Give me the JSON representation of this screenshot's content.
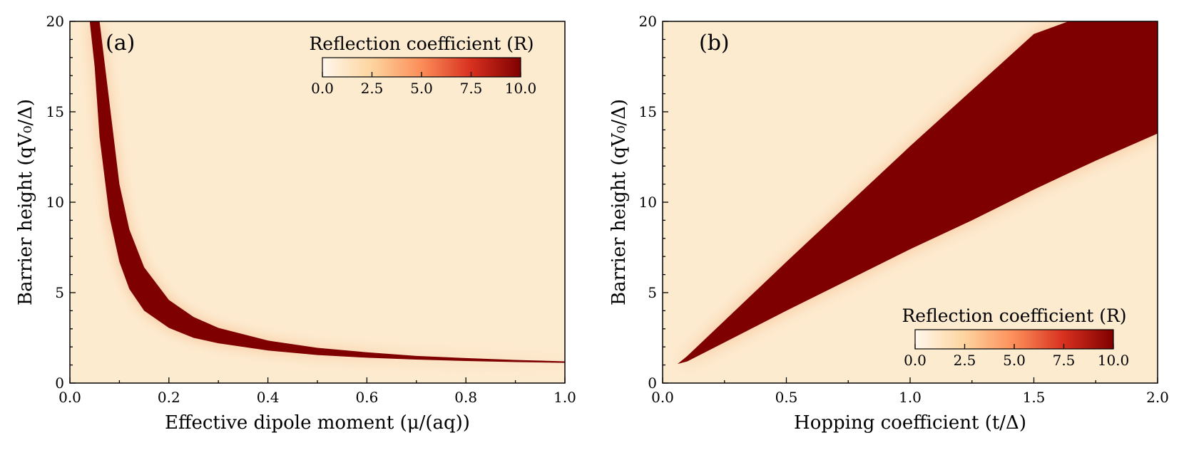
{
  "chart_data": [
    {
      "type": "heatmap",
      "panel_label": "(a)",
      "xlabel": "Effective dipole moment (μ/(aq))",
      "ylabel": "Barrier height (qV₀/Δ)",
      "xlim": [
        0.0,
        1.0
      ],
      "ylim": [
        0,
        20
      ],
      "xticks": [
        0.0,
        0.2,
        0.4,
        0.6,
        0.8,
        1.0
      ],
      "xtick_labels": [
        "0.0",
        "0.2",
        "0.4",
        "0.6",
        "0.8",
        "1.0"
      ],
      "yticks": [
        0,
        5,
        10,
        15,
        20
      ],
      "ytick_labels": [
        "0",
        "5",
        "10",
        "15",
        "20"
      ],
      "band": {
        "description": "high-reflection band (R saturated at 10) following V ≈ 1/(1-sqrt(1-c·μ)) style curve",
        "x": [
          0.04,
          0.05,
          0.06,
          0.08,
          0.1,
          0.12,
          0.15,
          0.2,
          0.25,
          0.3,
          0.4,
          0.5,
          0.6,
          0.7,
          0.8,
          0.9,
          1.0
        ],
        "y_lower": [
          20,
          17.5,
          13.6,
          9.2,
          6.7,
          5.2,
          4.0,
          3.05,
          2.5,
          2.2,
          1.8,
          1.55,
          1.4,
          1.3,
          1.22,
          1.16,
          1.12
        ],
        "y_upper": [
          20,
          20,
          20,
          15.5,
          11.0,
          8.5,
          6.4,
          4.6,
          3.65,
          3.05,
          2.35,
          1.95,
          1.7,
          1.5,
          1.38,
          1.28,
          1.2
        ]
      },
      "colorbar": {
        "title": "Reflection coefficient (R)",
        "range": [
          0,
          10
        ],
        "ticks": [
          0.0,
          2.5,
          5.0,
          7.5,
          10.0
        ],
        "tick_labels": [
          "0.0",
          "2.5",
          "5.0",
          "7.5",
          "10.0"
        ],
        "placement": "top-right"
      }
    },
    {
      "type": "heatmap",
      "panel_label": "(b)",
      "xlabel": "Hopping coefficient (t/Δ)",
      "ylabel": "Barrier height (qV₀/Δ)",
      "xlim": [
        0.0,
        2.0
      ],
      "ylim": [
        0,
        20
      ],
      "xticks": [
        0.0,
        0.5,
        1.0,
        1.5,
        2.0
      ],
      "xtick_labels": [
        "0.0",
        "0.5",
        "1.0",
        "1.5",
        "2.0"
      ],
      "yticks": [
        0,
        5,
        10,
        15,
        20
      ],
      "ytick_labels": [
        "0",
        "5",
        "10",
        "15",
        "20"
      ],
      "band": {
        "description": "high-reflection wedge (R saturated at 10) opening from (0.06, 1) toward large t",
        "x": [
          0.06,
          0.1,
          0.2,
          0.3,
          0.5,
          0.75,
          1.0,
          1.25,
          1.5,
          1.64,
          1.75,
          2.0
        ],
        "y_lower": [
          1.05,
          1.2,
          1.9,
          2.6,
          4.0,
          5.7,
          7.4,
          9.0,
          10.7,
          11.6,
          12.3,
          13.8
        ],
        "y_upper": [
          1.05,
          1.5,
          2.8,
          4.1,
          6.7,
          9.9,
          13.1,
          16.2,
          19.3,
          20,
          20,
          20
        ]
      },
      "colorbar": {
        "title": "Reflection coefficient (R)",
        "range": [
          0,
          10
        ],
        "ticks": [
          0.0,
          2.5,
          5.0,
          7.5,
          10.0
        ],
        "tick_labels": [
          "0.0",
          "2.5",
          "5.0",
          "7.5",
          "10.0"
        ],
        "placement": "bottom-right"
      }
    }
  ],
  "colors": {
    "background_low": "#fdebd0",
    "band_high": "#7f0000",
    "cmap_stops": [
      "#fff7ec",
      "#fdd49e",
      "#fc8d59",
      "#d7301f",
      "#7f0000"
    ]
  }
}
